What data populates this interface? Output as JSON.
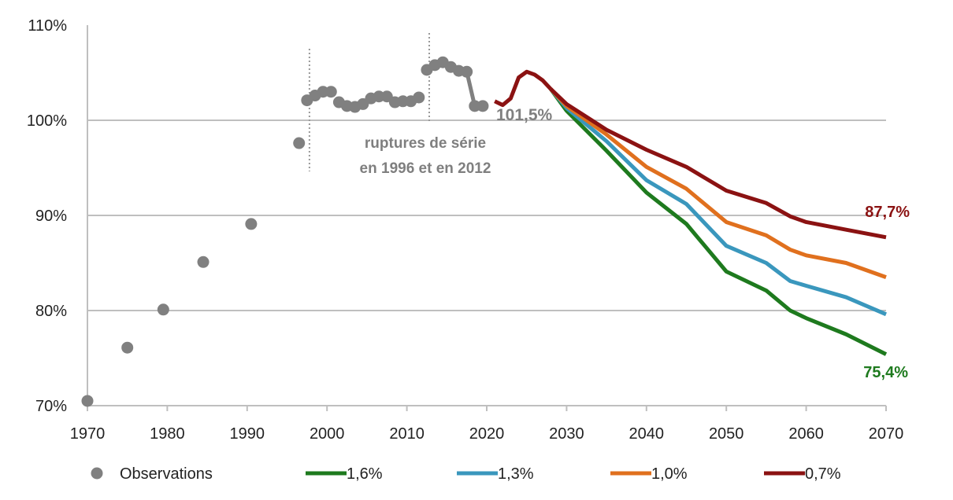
{
  "chart_data": {
    "type": "line",
    "title": "",
    "xlabel": "",
    "ylabel": "",
    "xlim": [
      1970,
      2070
    ],
    "ylim": [
      70,
      110
    ],
    "x_ticks": [
      "1970",
      "1980",
      "1990",
      "2000",
      "2010",
      "2020",
      "2030",
      "2040",
      "2050",
      "2060",
      "2070"
    ],
    "y_ticks": [
      "70%",
      "80%",
      "90%",
      "100%",
      "110%"
    ],
    "grid": "horizontal",
    "legend_position": "bottom",
    "observations": {
      "name": "Observations",
      "color": "#808080",
      "points": [
        [
          1970,
          70.5
        ],
        [
          1975,
          76.1
        ],
        [
          1979.5,
          80.1
        ],
        [
          1984.5,
          85.1
        ],
        [
          1990.5,
          89.1
        ],
        [
          1996.5,
          97.6
        ],
        [
          1997.5,
          102.1
        ],
        [
          1998.5,
          102.6
        ],
        [
          1999.5,
          103.0
        ],
        [
          2000.5,
          103.0
        ],
        [
          2001.5,
          101.9
        ],
        [
          2002.5,
          101.5
        ],
        [
          2003.5,
          101.4
        ],
        [
          2004.5,
          101.7
        ],
        [
          2005.5,
          102.3
        ],
        [
          2006.5,
          102.5
        ],
        [
          2007.5,
          102.5
        ],
        [
          2008.5,
          101.9
        ],
        [
          2009.5,
          102.0
        ],
        [
          2010.5,
          102.0
        ],
        [
          2011.5,
          102.4
        ],
        [
          2012.5,
          105.3
        ],
        [
          2013.5,
          105.8
        ],
        [
          2014.5,
          106.1
        ],
        [
          2015.5,
          105.6
        ],
        [
          2016.5,
          105.2
        ],
        [
          2017.5,
          105.1
        ],
        [
          2018.5,
          101.5
        ],
        [
          2019.5,
          101.5
        ]
      ],
      "segments": [
        [
          0
        ],
        [
          1
        ],
        [
          2
        ],
        [
          3
        ],
        [
          4
        ],
        [
          5
        ],
        [
          6,
          7,
          8,
          9
        ],
        [
          10,
          11,
          12,
          13,
          14,
          15,
          16,
          17,
          18,
          19,
          20
        ],
        [
          21,
          22,
          23,
          24,
          25,
          26,
          27,
          28
        ]
      ]
    },
    "common_path": [
      [
        2021,
        102.0
      ],
      [
        2022,
        101.6
      ],
      [
        2023,
        102.3
      ],
      [
        2024,
        104.5
      ],
      [
        2025,
        105.1
      ],
      [
        2026,
        104.8
      ],
      [
        2027,
        104.2
      ],
      [
        2028,
        103.3
      ]
    ],
    "series": [
      {
        "name": "1,6%",
        "color": "#1e7a1e",
        "x": [
          2028,
          2030,
          2035,
          2040,
          2045,
          2050,
          2055,
          2058,
          2060,
          2065,
          2070
        ],
        "values": [
          103.3,
          101.0,
          96.8,
          92.4,
          89.1,
          84.1,
          82.1,
          80.0,
          79.2,
          77.5,
          75.4
        ]
      },
      {
        "name": "1,3%",
        "color": "#3a97bd",
        "x": [
          2028,
          2030,
          2035,
          2040,
          2045,
          2050,
          2055,
          2058,
          2060,
          2065,
          2070
        ],
        "values": [
          103.3,
          101.3,
          97.8,
          93.7,
          91.2,
          86.8,
          85.0,
          83.1,
          82.6,
          81.4,
          79.6
        ]
      },
      {
        "name": "1,0%",
        "color": "#e0701e",
        "x": [
          2028,
          2030,
          2035,
          2040,
          2045,
          2050,
          2055,
          2058,
          2060,
          2065,
          2070
        ],
        "values": [
          103.3,
          101.5,
          98.5,
          95.1,
          92.8,
          89.3,
          87.9,
          86.4,
          85.8,
          85.0,
          83.5
        ]
      },
      {
        "name": "0,7%",
        "color": "#8b1212",
        "x": [
          2028,
          2030,
          2035,
          2040,
          2045,
          2050,
          2055,
          2058,
          2060,
          2065,
          2070
        ],
        "values": [
          103.3,
          101.7,
          99.0,
          96.9,
          95.1,
          92.6,
          91.3,
          89.9,
          89.3,
          88.5,
          87.7
        ]
      }
    ],
    "annotations": {
      "start_label": "101,5%",
      "end_label_high": "87,7%",
      "end_label_low": "75,4%",
      "breaks_line1": "ruptures de série",
      "breaks_line2": "en 1996 et en 2012",
      "break_years": [
        1997.8,
        2012.8
      ]
    }
  }
}
